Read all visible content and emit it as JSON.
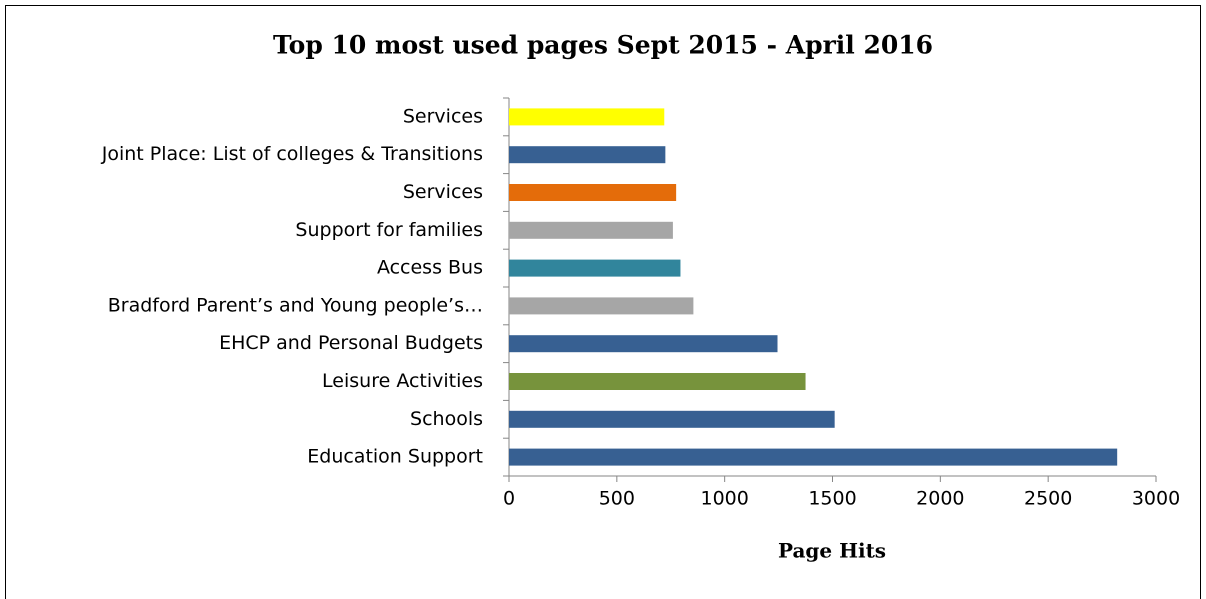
{
  "chart_data": {
    "type": "hbar",
    "title": "Top 10 most used pages Sept 2015 - April 2016",
    "x_label": "Page Hits",
    "categories": [
      "Services",
      "Joint Place: List of colleges & Transitions",
      "Services",
      "Support for families",
      "Access Bus",
      "Bradford Parent’s and Young people’s…",
      "EHCP and Personal Budgets",
      "Leisure Activities",
      "Schools",
      "Education Support"
    ],
    "values": [
      720,
      725,
      775,
      760,
      795,
      855,
      1245,
      1375,
      1510,
      2820
    ],
    "colors": [
      "#ffff00",
      "#376092",
      "#e46c0a",
      "#a6a6a6",
      "#31859c",
      "#a6a6a6",
      "#376092",
      "#77933c",
      "#376092",
      "#376092"
    ],
    "xlim": [
      0,
      3000
    ],
    "xticks": [
      0,
      500,
      1000,
      1500,
      2000,
      2500,
      3000
    ]
  }
}
